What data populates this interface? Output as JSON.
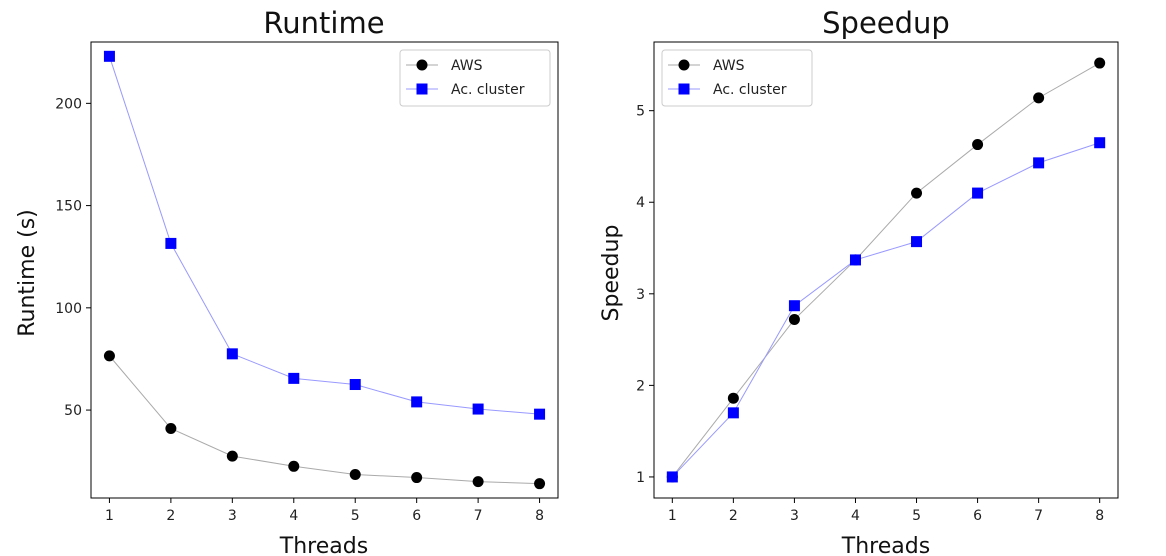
{
  "chart_data": [
    {
      "type": "line",
      "title": "Runtime",
      "xlabel": "Threads",
      "ylabel": "Runtime (s)",
      "x": [
        1,
        2,
        3,
        4,
        5,
        6,
        7,
        8
      ],
      "xlim": [
        0.7,
        8.3
      ],
      "ylim": [
        7,
        230
      ],
      "yticks": [
        50,
        100,
        150,
        200
      ],
      "legend": "top-right",
      "series": [
        {
          "name": "AWS",
          "marker": "circle",
          "color": "#000000",
          "line_color": "#aaaaaa",
          "values": [
            76.5,
            41,
            27.5,
            22.5,
            18.5,
            17,
            15,
            14
          ]
        },
        {
          "name": "Ac. cluster",
          "marker": "square",
          "color": "#0000ff",
          "line_color": "#9999ff",
          "values": [
            223,
            131.5,
            77.5,
            65.5,
            62.5,
            54,
            50.5,
            48
          ]
        }
      ]
    },
    {
      "type": "line",
      "title": "Speedup",
      "xlabel": "Threads",
      "ylabel": "Speedup",
      "x": [
        1,
        2,
        3,
        4,
        5,
        6,
        7,
        8
      ],
      "xlim": [
        0.7,
        8.3
      ],
      "ylim": [
        0.77,
        5.75
      ],
      "yticks": [
        1,
        2,
        3,
        4,
        5
      ],
      "legend": "top-left",
      "series": [
        {
          "name": "AWS",
          "marker": "circle",
          "color": "#000000",
          "line_color": "#aaaaaa",
          "values": [
            1.0,
            1.86,
            2.72,
            3.37,
            4.1,
            4.63,
            5.14,
            5.52
          ]
        },
        {
          "name": "Ac. cluster",
          "marker": "square",
          "color": "#0000ff",
          "line_color": "#9999ff",
          "values": [
            1.0,
            1.7,
            2.87,
            3.37,
            3.57,
            4.1,
            4.43,
            4.65
          ]
        }
      ]
    }
  ]
}
